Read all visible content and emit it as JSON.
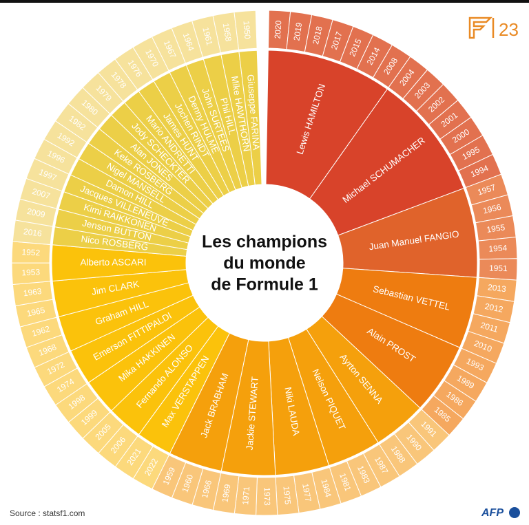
{
  "chart_data": {
    "type": "sunburst",
    "title": [
      "Les champions",
      "du monde",
      "de Formule 1"
    ],
    "source": "Source : statsf1.com",
    "logos": {
      "edition": "23",
      "agency": "AFP"
    },
    "drivers": [
      {
        "name": "Lewis HAMILTON",
        "color": "#d8432a",
        "year_color": "#e2714f",
        "years": [
          2020,
          2019,
          2018,
          2017,
          2015,
          2014,
          2008
        ]
      },
      {
        "name": "Michael SCHUMACHER",
        "color": "#d8432a",
        "year_color": "#e2714f",
        "years": [
          2004,
          2003,
          2002,
          2001,
          2000,
          1995,
          1994
        ]
      },
      {
        "name": "Juan Manuel FANGIO",
        "color": "#e0632b",
        "year_color": "#eb8a59",
        "years": [
          1957,
          1956,
          1955,
          1954,
          1951
        ]
      },
      {
        "name": "Sebastian VETTEL",
        "color": "#ee7c10",
        "year_color": "#f5a85f",
        "years": [
          2013,
          2012,
          2011,
          2010
        ]
      },
      {
        "name": "Alain PROST",
        "color": "#ee7c10",
        "year_color": "#f5a85f",
        "years": [
          1993,
          1989,
          1986,
          1985
        ]
      },
      {
        "name": "Ayrton SENNA",
        "color": "#f5a00c",
        "year_color": "#f9c67a",
        "years": [
          1991,
          1990,
          1988
        ]
      },
      {
        "name": "Nelson PIQUET",
        "color": "#f5a00c",
        "year_color": "#f9c67a",
        "years": [
          1987,
          1983,
          1981
        ]
      },
      {
        "name": "Niki LAUDA",
        "color": "#f5a00c",
        "year_color": "#f9c67a",
        "years": [
          1984,
          1977,
          1975
        ]
      },
      {
        "name": "Jackie STEWART",
        "color": "#f5a00c",
        "year_color": "#f9c67a",
        "years": [
          1973,
          1971,
          1969
        ]
      },
      {
        "name": "Jack BRABHAM",
        "color": "#f5a00c",
        "year_color": "#f9c67a",
        "years": [
          1966,
          1960,
          1959
        ]
      },
      {
        "name": "Max VERSTAPPEN",
        "color": "#fbc20b",
        "year_color": "#fcd97c",
        "years": [
          2022,
          2021
        ]
      },
      {
        "name": "Fernando ALONSO",
        "color": "#fbc20b",
        "year_color": "#fcd97c",
        "years": [
          2006,
          2005
        ]
      },
      {
        "name": "Mika HAKKINEN",
        "color": "#fbc20b",
        "year_color": "#fcd97c",
        "years": [
          1999,
          1998
        ]
      },
      {
        "name": "Emerson FITTIPALDI",
        "color": "#fbc20b",
        "year_color": "#fcd97c",
        "years": [
          1974,
          1972
        ]
      },
      {
        "name": "Graham HILL",
        "color": "#fbc20b",
        "year_color": "#fcd97c",
        "years": [
          1968,
          1962
        ]
      },
      {
        "name": "Jim CLARK",
        "color": "#fbc20b",
        "year_color": "#fcd97c",
        "years": [
          1965,
          1963
        ]
      },
      {
        "name": "Alberto ASCARI",
        "color": "#fbc20b",
        "year_color": "#fcd97c",
        "years": [
          1953,
          1952
        ]
      },
      {
        "name": "Nico ROSBERG",
        "color": "#eccf47",
        "year_color": "#f6e29c",
        "years": [
          2016
        ]
      },
      {
        "name": "Jenson BUTTON",
        "color": "#eccf47",
        "year_color": "#f6e29c",
        "years": [
          2009
        ]
      },
      {
        "name": "Kimi RAIKKONEN",
        "color": "#eccf47",
        "year_color": "#f6e29c",
        "years": [
          2007
        ]
      },
      {
        "name": "Jacques VILLENEUVE",
        "color": "#eccf47",
        "year_color": "#f6e29c",
        "years": [
          1997
        ]
      },
      {
        "name": "Damon HILL",
        "color": "#eccf47",
        "year_color": "#f6e29c",
        "years": [
          1996
        ]
      },
      {
        "name": "Nigel MANSELL",
        "color": "#eccf47",
        "year_color": "#f6e29c",
        "years": [
          1992
        ]
      },
      {
        "name": "Keke ROSBERG",
        "color": "#eccf47",
        "year_color": "#f6e29c",
        "years": [
          1982
        ]
      },
      {
        "name": "Alan JONES",
        "color": "#eccf47",
        "year_color": "#f6e29c",
        "years": [
          1980
        ]
      },
      {
        "name": "Jody SCHECKTER",
        "color": "#eccf47",
        "year_color": "#f6e29c",
        "years": [
          1979
        ]
      },
      {
        "name": "Mario ANDRETTI",
        "color": "#eccf47",
        "year_color": "#f6e29c",
        "years": [
          1978
        ]
      },
      {
        "name": "James HUNT",
        "color": "#eccf47",
        "year_color": "#f6e29c",
        "years": [
          1976
        ]
      },
      {
        "name": "Jochen RINDT",
        "color": "#eccf47",
        "year_color": "#f6e29c",
        "years": [
          1970
        ]
      },
      {
        "name": "Denny HULME",
        "color": "#eccf47",
        "year_color": "#f6e29c",
        "years": [
          1967
        ]
      },
      {
        "name": "John SURTEES",
        "color": "#eccf47",
        "year_color": "#f6e29c",
        "years": [
          1964
        ]
      },
      {
        "name": "Phil HILL",
        "color": "#eccf47",
        "year_color": "#f6e29c",
        "years": [
          1961
        ]
      },
      {
        "name": "Mike HAWTHORN",
        "color": "#eccf47",
        "year_color": "#f6e29c",
        "years": [
          1958
        ]
      },
      {
        "name": "Giuseppe FARINA",
        "color": "#eccf47",
        "year_color": "#f6e29c",
        "years": [
          1950
        ]
      }
    ]
  }
}
